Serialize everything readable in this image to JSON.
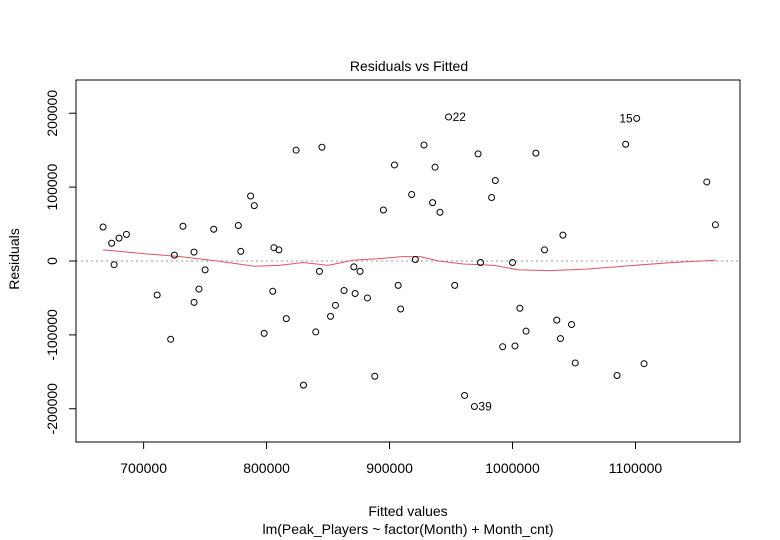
{
  "chart_data": {
    "type": "scatter",
    "title": "Residuals vs Fitted",
    "xlabel": "Fitted values",
    "sublabel": "lm(Peak_Players ~ factor(Month) + Month_cnt)",
    "ylabel": "Residuals",
    "xlim": [
      645000,
      1185000
    ],
    "ylim": [
      -245000,
      245000
    ],
    "x_ticks": [
      700000,
      800000,
      900000,
      1000000,
      1100000
    ],
    "x_tick_labels": [
      "700000",
      "800000",
      "900000",
      "1000000",
      "1100000"
    ],
    "y_ticks": [
      -200000,
      -100000,
      0,
      100000,
      200000
    ],
    "y_tick_labels": [
      "-200000",
      "-100000",
      "0",
      "100000",
      "200000"
    ],
    "reference_line": 0,
    "grid": false,
    "point_color": "#000000",
    "smooth_color": "#DF536B",
    "reference_color": "#999999",
    "points": [
      {
        "x": 667000,
        "y": 46000
      },
      {
        "x": 674000,
        "y": 24000
      },
      {
        "x": 676000,
        "y": -5000
      },
      {
        "x": 680000,
        "y": 31000
      },
      {
        "x": 686000,
        "y": 36000
      },
      {
        "x": 711000,
        "y": -46000
      },
      {
        "x": 722000,
        "y": -106000
      },
      {
        "x": 725000,
        "y": 8000
      },
      {
        "x": 732000,
        "y": 47000
      },
      {
        "x": 741000,
        "y": 12000
      },
      {
        "x": 741000,
        "y": -56000
      },
      {
        "x": 745000,
        "y": -38000
      },
      {
        "x": 750000,
        "y": -12000
      },
      {
        "x": 757000,
        "y": 43000
      },
      {
        "x": 777000,
        "y": 48000
      },
      {
        "x": 779000,
        "y": 13000
      },
      {
        "x": 787000,
        "y": 88000
      },
      {
        "x": 790000,
        "y": 75000
      },
      {
        "x": 798000,
        "y": -98000
      },
      {
        "x": 805000,
        "y": -41000
      },
      {
        "x": 806000,
        "y": 18000
      },
      {
        "x": 810000,
        "y": 15000
      },
      {
        "x": 816000,
        "y": -78000
      },
      {
        "x": 824000,
        "y": 150000
      },
      {
        "x": 830000,
        "y": -168000
      },
      {
        "x": 840000,
        "y": -96000
      },
      {
        "x": 843000,
        "y": -14000
      },
      {
        "x": 845000,
        "y": 154000
      },
      {
        "x": 852000,
        "y": -75000
      },
      {
        "x": 856000,
        "y": -60000
      },
      {
        "x": 863000,
        "y": -40000
      },
      {
        "x": 871000,
        "y": -8000
      },
      {
        "x": 872000,
        "y": -44000
      },
      {
        "x": 876000,
        "y": -14000
      },
      {
        "x": 882000,
        "y": -50000
      },
      {
        "x": 888000,
        "y": -156000
      },
      {
        "x": 895000,
        "y": 69000
      },
      {
        "x": 904000,
        "y": 130000
      },
      {
        "x": 907000,
        "y": -33000
      },
      {
        "x": 909000,
        "y": -65000
      },
      {
        "x": 918000,
        "y": 90000
      },
      {
        "x": 921000,
        "y": 2000
      },
      {
        "x": 928000,
        "y": 157000
      },
      {
        "x": 935000,
        "y": 79000
      },
      {
        "x": 937000,
        "y": 127000
      },
      {
        "x": 941000,
        "y": 66000
      },
      {
        "x": 948000,
        "y": 195000
      },
      {
        "x": 953000,
        "y": -33000
      },
      {
        "x": 961000,
        "y": -182000
      },
      {
        "x": 969000,
        "y": -197000
      },
      {
        "x": 972000,
        "y": 145000
      },
      {
        "x": 974000,
        "y": -2000
      },
      {
        "x": 983000,
        "y": 86000
      },
      {
        "x": 986000,
        "y": 109000
      },
      {
        "x": 992000,
        "y": -116000
      },
      {
        "x": 1000000,
        "y": -2000
      },
      {
        "x": 1002000,
        "y": -115000
      },
      {
        "x": 1006000,
        "y": -64000
      },
      {
        "x": 1011000,
        "y": -95000
      },
      {
        "x": 1019000,
        "y": 146000
      },
      {
        "x": 1026000,
        "y": 15000
      },
      {
        "x": 1036000,
        "y": -80000
      },
      {
        "x": 1039000,
        "y": -105000
      },
      {
        "x": 1041000,
        "y": 35000
      },
      {
        "x": 1048000,
        "y": -86000
      },
      {
        "x": 1051000,
        "y": -138000
      },
      {
        "x": 1085000,
        "y": -155000
      },
      {
        "x": 1092000,
        "y": 158000
      },
      {
        "x": 1101000,
        "y": 193000
      },
      {
        "x": 1107000,
        "y": -139000
      },
      {
        "x": 1158000,
        "y": 107000
      },
      {
        "x": 1165000,
        "y": 49000
      }
    ],
    "point_labels": [
      {
        "text": "22",
        "x": 948000,
        "y": 195000,
        "side": "right"
      },
      {
        "text": "15",
        "x": 1101000,
        "y": 193000,
        "side": "left"
      },
      {
        "text": "39",
        "x": 969000,
        "y": -197000,
        "side": "right"
      }
    ],
    "smooth_line": [
      [
        667000,
        15000
      ],
      [
        700000,
        10000
      ],
      [
        730000,
        6000
      ],
      [
        760000,
        0
      ],
      [
        790000,
        -7000
      ],
      [
        810000,
        -6000
      ],
      [
        830000,
        -2000
      ],
      [
        850000,
        -6000
      ],
      [
        870000,
        1000
      ],
      [
        890000,
        3000
      ],
      [
        910000,
        6000
      ],
      [
        925000,
        6000
      ],
      [
        940000,
        0
      ],
      [
        960000,
        -4000
      ],
      [
        985000,
        -6000
      ],
      [
        1005000,
        -12000
      ],
      [
        1030000,
        -13000
      ],
      [
        1060000,
        -11000
      ],
      [
        1090000,
        -7000
      ],
      [
        1130000,
        -2000
      ],
      [
        1165000,
        1000
      ]
    ]
  }
}
